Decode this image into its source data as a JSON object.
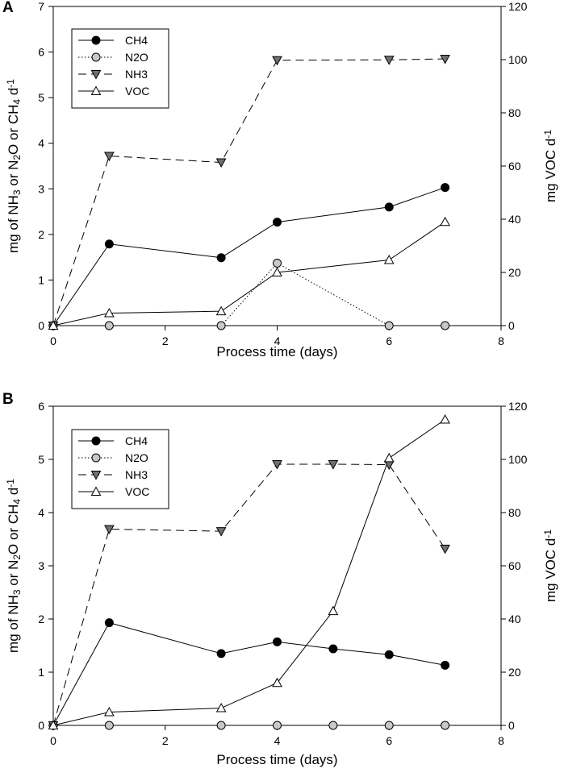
{
  "chart_data": [
    {
      "type": "line",
      "panel_label": "A",
      "xlabel": "Process time (days)",
      "ylabel": {
        "base": "mg of NH",
        "s1": "3",
        "mid1": " or N",
        "s2": "2",
        "mid2": "O or CH",
        "s3": "4",
        "mid3": " d",
        "sup": "-1"
      },
      "y2label": {
        "base": "mg VOC d",
        "sup": "-1"
      },
      "xlim": [
        0,
        8
      ],
      "ylim": [
        0,
        7
      ],
      "y2lim": [
        0,
        120
      ],
      "xticks": [
        "0",
        "2",
        "4",
        "6",
        "8"
      ],
      "yticks": [
        "0",
        "1",
        "2",
        "3",
        "4",
        "5",
        "6",
        "7"
      ],
      "y2ticks": [
        "0",
        "20",
        "40",
        "60",
        "80",
        "100",
        "120"
      ],
      "series": [
        {
          "name": "CH4",
          "axis": "left",
          "marker": "circle",
          "fill": "#000000",
          "dash": "",
          "x": [
            0,
            1,
            3,
            4,
            6,
            7
          ],
          "y": [
            0,
            1.79,
            1.49,
            2.27,
            2.6,
            3.03
          ]
        },
        {
          "name": "N2O",
          "axis": "left",
          "marker": "circle",
          "fill": "#c8c8c8",
          "dash": "1.5,2.5",
          "x": [
            0,
            1,
            3,
            4,
            6,
            7
          ],
          "y": [
            0,
            0,
            0,
            1.37,
            0,
            0
          ]
        },
        {
          "name": "NH3",
          "axis": "left",
          "marker": "triangle-down",
          "fill": "#707070",
          "dash": "10,6",
          "x": [
            0,
            1,
            3,
            4,
            6,
            7
          ],
          "y": [
            0,
            3.72,
            3.58,
            5.82,
            5.83,
            5.85
          ]
        },
        {
          "name": "VOC",
          "axis": "right",
          "marker": "triangle-up",
          "fill": "#ffffff",
          "dash": "",
          "x": [
            0,
            1,
            3,
            4,
            6,
            7
          ],
          "y": [
            0,
            4.7,
            5.4,
            20,
            24.7,
            39
          ]
        }
      ]
    },
    {
      "type": "line",
      "panel_label": "B",
      "xlabel": "Process time (days)",
      "ylabel": {
        "base": "mg of NH",
        "s1": "3",
        "mid1": " or N",
        "s2": "2",
        "mid2": "O or CH",
        "s3": "4",
        "mid3": " d",
        "sup": "-1"
      },
      "y2label": {
        "base": "mg VOC d",
        "sup": "-1"
      },
      "xlim": [
        0,
        8
      ],
      "ylim": [
        0,
        6
      ],
      "y2lim": [
        0,
        120
      ],
      "xticks": [
        "0",
        "2",
        "4",
        "6",
        "8"
      ],
      "yticks": [
        "0",
        "1",
        "2",
        "3",
        "4",
        "5",
        "6"
      ],
      "y2ticks": [
        "0",
        "20",
        "40",
        "60",
        "80",
        "100",
        "120"
      ],
      "series": [
        {
          "name": "CH4",
          "axis": "left",
          "marker": "circle",
          "fill": "#000000",
          "dash": "",
          "x": [
            0,
            1,
            3,
            4,
            5,
            6,
            7
          ],
          "y": [
            0,
            1.93,
            1.35,
            1.57,
            1.44,
            1.33,
            1.13
          ]
        },
        {
          "name": "N2O",
          "axis": "left",
          "marker": "circle",
          "fill": "#c8c8c8",
          "dash": "1.5,2.5",
          "x": [
            0,
            1,
            3,
            4,
            5,
            6,
            7
          ],
          "y": [
            0,
            0,
            0,
            0,
            0,
            0,
            0
          ]
        },
        {
          "name": "NH3",
          "axis": "left",
          "marker": "triangle-down",
          "fill": "#707070",
          "dash": "10,6",
          "x": [
            0,
            1,
            3,
            4,
            5,
            6,
            7
          ],
          "y": [
            0,
            3.69,
            3.65,
            4.91,
            4.91,
            4.9,
            3.32
          ]
        },
        {
          "name": "VOC",
          "axis": "right",
          "marker": "triangle-up",
          "fill": "#ffffff",
          "dash": "",
          "x": [
            0,
            1,
            3,
            4,
            5,
            6,
            7
          ],
          "y": [
            0,
            5,
            6.5,
            16,
            43,
            100.5,
            115
          ]
        }
      ]
    }
  ]
}
